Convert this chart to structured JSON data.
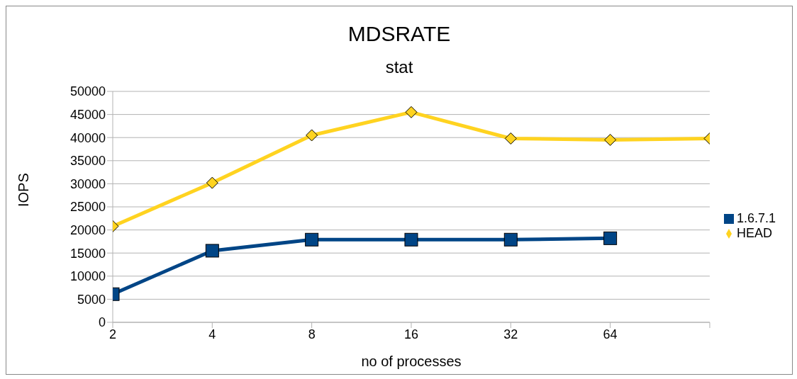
{
  "chart_data": {
    "type": "line",
    "title": "MDSRATE",
    "subtitle": "stat",
    "xlabel": "no of processes",
    "ylabel": "IOPS",
    "categories": [
      "2",
      "4",
      "8",
      "16",
      "32",
      "64",
      null
    ],
    "series": [
      {
        "name": "1.6.7.1",
        "color": "#004586",
        "marker": "square",
        "values": [
          6100,
          15500,
          17900,
          17900,
          17900,
          18200,
          null
        ]
      },
      {
        "name": "HEAD",
        "color": "#ffd320",
        "marker": "diamond",
        "values": [
          20800,
          30200,
          40500,
          45500,
          39800,
          39500,
          39800
        ]
      }
    ],
    "ylim": [
      0,
      50000
    ],
    "yticks": [
      0,
      5000,
      10000,
      15000,
      20000,
      25000,
      30000,
      35000,
      40000,
      45000,
      50000
    ],
    "grid": "y",
    "legend": "right"
  }
}
